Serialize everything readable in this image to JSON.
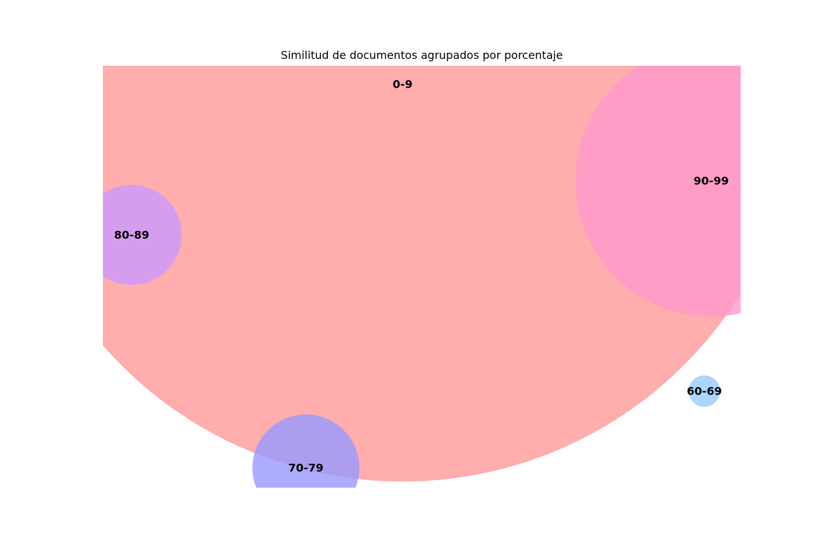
{
  "chart_data": {
    "type": "bubble",
    "title": "Similitud de documentos agrupados por porcentaje",
    "axes_visible": false,
    "bubbles": [
      {
        "label": "0-9",
        "color": "#ff9999"
      },
      {
        "label": "60-69",
        "color": "#99ccff"
      },
      {
        "label": "70-79",
        "color": "#9999ff"
      },
      {
        "label": "80-89",
        "color": "#cc99ff"
      },
      {
        "label": "90-99",
        "color": "#ff99cc"
      }
    ]
  }
}
